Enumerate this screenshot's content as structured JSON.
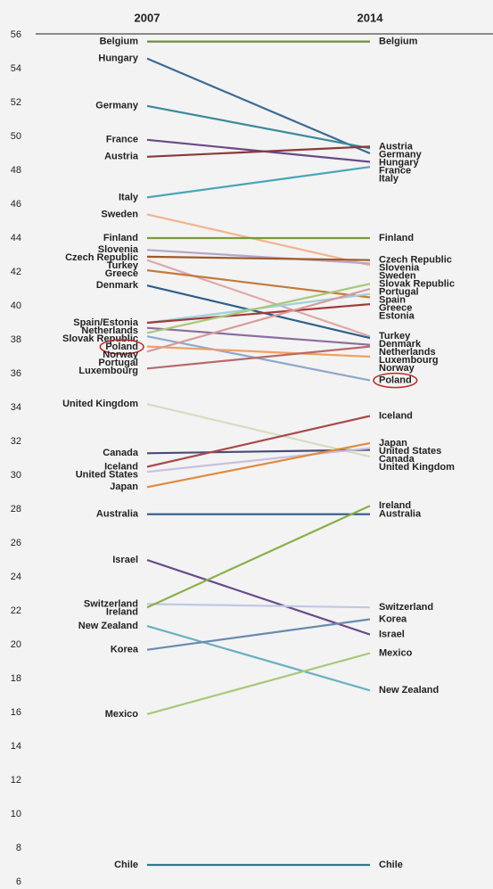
{
  "chart_data": {
    "type": "slope",
    "x": [
      "2007",
      "2014"
    ],
    "ylim": [
      6,
      56
    ],
    "yticks": [
      6,
      8,
      10,
      12,
      14,
      16,
      18,
      20,
      22,
      24,
      26,
      28,
      30,
      32,
      34,
      36,
      38,
      40,
      42,
      44,
      46,
      48,
      50,
      52,
      54,
      56
    ],
    "series": [
      {
        "name": "Belgium",
        "color": "#6f8f3a",
        "values": [
          55.6,
          55.6
        ]
      },
      {
        "name": "Hungary",
        "color": "#3b6a94",
        "values": [
          54.6,
          49.0
        ]
      },
      {
        "name": "Germany",
        "color": "#3a8a9a",
        "values": [
          51.8,
          49.3
        ]
      },
      {
        "name": "France",
        "color": "#6a4a86",
        "values": [
          49.8,
          48.5
        ]
      },
      {
        "name": "Austria",
        "color": "#8a3a3a",
        "values": [
          48.8,
          49.4
        ]
      },
      {
        "name": "Italy",
        "color": "#4aa5b8",
        "values": [
          46.4,
          48.2
        ]
      },
      {
        "name": "Sweden",
        "color": "#f2b48e",
        "values": [
          45.4,
          42.4
        ]
      },
      {
        "name": "Finland",
        "color": "#7a9a3a",
        "values": [
          44.0,
          44.0
        ]
      },
      {
        "name": "Slovenia",
        "color": "#b5a6c9",
        "values": [
          43.3,
          42.5
        ]
      },
      {
        "name": "Czech Republic",
        "color": "#9b5a2a",
        "values": [
          42.9,
          42.7
        ]
      },
      {
        "name": "Turkey",
        "color": "#e0a8a8",
        "values": [
          42.7,
          38.2
        ]
      },
      {
        "name": "Greece",
        "color": "#c47a3a",
        "values": [
          42.1,
          40.5
        ]
      },
      {
        "name": "Denmark",
        "color": "#2f5f8a",
        "values": [
          41.2,
          38.1
        ]
      },
      {
        "name": "Spain",
        "color": "#9fd0dc",
        "values": [
          39.0,
          40.7
        ],
        "label_2007": "Spain/Estonia"
      },
      {
        "name": "Estonia",
        "color": "#a33a3a",
        "values": [
          39.0,
          40.1
        ],
        "hide_2007": true
      },
      {
        "name": "Netherlands",
        "color": "#8a6fa0",
        "values": [
          38.7,
          37.7
        ]
      },
      {
        "name": "Slovak Republic",
        "color": "#a8c878",
        "values": [
          38.4,
          41.3
        ]
      },
      {
        "name": "Poland",
        "color": "#8fa8cc",
        "values": [
          38.2,
          35.6
        ],
        "highlight": true
      },
      {
        "name": "Norway",
        "color": "#f0a060",
        "values": [
          37.6,
          37.0
        ]
      },
      {
        "name": "Portugal",
        "color": "#d89a9a",
        "values": [
          37.3,
          41.0
        ]
      },
      {
        "name": "Luxembourg",
        "color": "#b86a6a",
        "values": [
          36.3,
          37.6
        ]
      },
      {
        "name": "United Kingdom",
        "color": "#d8dcc0",
        "values": [
          34.2,
          31.1
        ]
      },
      {
        "name": "Canada",
        "color": "#4a4a7a",
        "values": [
          31.3,
          31.5
        ]
      },
      {
        "name": "Iceland",
        "color": "#a84a4a",
        "values": [
          30.5,
          33.5
        ]
      },
      {
        "name": "United States",
        "color": "#c8c0dc",
        "values": [
          30.2,
          31.6
        ]
      },
      {
        "name": "Japan",
        "color": "#e08a40",
        "values": [
          29.3,
          31.9
        ]
      },
      {
        "name": "Australia",
        "color": "#2f5a8a",
        "values": [
          27.7,
          27.7
        ]
      },
      {
        "name": "Israel",
        "color": "#6a4a8a",
        "values": [
          25.0,
          20.6
        ]
      },
      {
        "name": "Switzerland",
        "color": "#c0c8e4",
        "values": [
          22.4,
          22.2
        ]
      },
      {
        "name": "Ireland",
        "color": "#8ab04a",
        "values": [
          22.2,
          28.2
        ]
      },
      {
        "name": "New Zealand",
        "color": "#6ab0c0",
        "values": [
          21.1,
          17.3
        ]
      },
      {
        "name": "Korea",
        "color": "#6a8ab0",
        "values": [
          19.7,
          21.5
        ]
      },
      {
        "name": "Mexico",
        "color": "#a8c87a",
        "values": [
          15.9,
          19.5
        ]
      },
      {
        "name": "Chile",
        "color": "#2f7a8a",
        "values": [
          7.0,
          7.0
        ]
      }
    ]
  }
}
